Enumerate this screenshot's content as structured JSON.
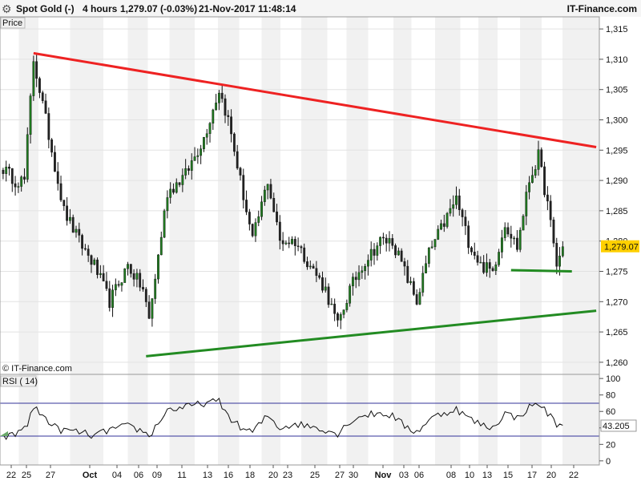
{
  "header": {
    "instrument": "Spot Gold (-)",
    "timeframe": "4 hours",
    "quote": "1,279.07 (-0.03%)",
    "datetime": "21-Nov-2017 11:48:14",
    "brand": "IT-Finance.com"
  },
  "price_panel": {
    "label": "Price",
    "watermark": "© IT-Finance.com",
    "last_price_label": "1,279.07",
    "last_price_color": "#ffd000"
  },
  "rsi_panel": {
    "label": "RSI ( 14)",
    "last_value_label": "43.205"
  },
  "colors": {
    "up_candle": "#1f7a1f",
    "down_candle": "#222222",
    "resistance_line": "#ee2222",
    "support_line": "#228b22",
    "band_line": "#333399",
    "alt_band": "#f1f1f1"
  },
  "chart_data": [
    {
      "type": "candlestick",
      "panel": "price",
      "title": "Spot Gold (-)",
      "ylim": [
        1258,
        1317
      ],
      "yticks": [
        1260,
        1265,
        1270,
        1275,
        1280,
        1285,
        1290,
        1295,
        1300,
        1305,
        1310,
        1315
      ],
      "ytick_labels": [
        "1,260",
        "1,265",
        "1,270",
        "1,275",
        "1,280",
        "1,285",
        "1,290",
        "1,295",
        "1,300",
        "1,305",
        "1,310",
        "1,315"
      ],
      "x_labels": [
        "22",
        "25",
        "27",
        "Oct",
        "04",
        "06",
        "09",
        "11",
        "13",
        "16",
        "18",
        "20",
        "23",
        "25",
        "27",
        "30",
        "Nov",
        "03",
        "06",
        "08",
        "10",
        "13",
        "15",
        "17",
        "20",
        "22"
      ],
      "x_label_bold": [
        "Oct",
        "Nov"
      ],
      "grid": true,
      "last_price": 1279.07,
      "anchors": [
        {
          "i": 0,
          "v": 1292
        },
        {
          "i": 4,
          "v": 1290
        },
        {
          "i": 7,
          "v": 1290
        },
        {
          "i": 10,
          "v": 1310
        },
        {
          "i": 14,
          "v": 1300
        },
        {
          "i": 20,
          "v": 1285
        },
        {
          "i": 25,
          "v": 1280
        },
        {
          "i": 30,
          "v": 1276
        },
        {
          "i": 35,
          "v": 1270
        },
        {
          "i": 41,
          "v": 1276
        },
        {
          "i": 46,
          "v": 1272
        },
        {
          "i": 48,
          "v": 1267
        },
        {
          "i": 54,
          "v": 1288
        },
        {
          "i": 60,
          "v": 1291
        },
        {
          "i": 66,
          "v": 1297
        },
        {
          "i": 71,
          "v": 1305
        },
        {
          "i": 74,
          "v": 1300
        },
        {
          "i": 78,
          "v": 1290
        },
        {
          "i": 82,
          "v": 1280
        },
        {
          "i": 87,
          "v": 1290
        },
        {
          "i": 91,
          "v": 1280
        },
        {
          "i": 96,
          "v": 1280
        },
        {
          "i": 101,
          "v": 1276
        },
        {
          "i": 106,
          "v": 1272
        },
        {
          "i": 110,
          "v": 1266
        },
        {
          "i": 114,
          "v": 1272
        },
        {
          "i": 118,
          "v": 1276
        },
        {
          "i": 124,
          "v": 1280
        },
        {
          "i": 128,
          "v": 1280
        },
        {
          "i": 132,
          "v": 1275
        },
        {
          "i": 136,
          "v": 1270
        },
        {
          "i": 140,
          "v": 1278
        },
        {
          "i": 144,
          "v": 1282
        },
        {
          "i": 149,
          "v": 1287
        },
        {
          "i": 153,
          "v": 1280
        },
        {
          "i": 157,
          "v": 1276
        },
        {
          "i": 161,
          "v": 1275
        },
        {
          "i": 165,
          "v": 1283
        },
        {
          "i": 169,
          "v": 1279
        },
        {
          "i": 173,
          "v": 1290
        },
        {
          "i": 176,
          "v": 1294
        },
        {
          "i": 179,
          "v": 1286
        },
        {
          "i": 182,
          "v": 1276
        },
        {
          "i": 184,
          "v": 1279
        }
      ],
      "trendlines": [
        {
          "kind": "resistance",
          "i1": 10,
          "v1": 1311,
          "i2": 195,
          "v2": 1295.5
        },
        {
          "kind": "support",
          "i1": 47,
          "v1": 1261,
          "i2": 195,
          "v2": 1268.5
        },
        {
          "kind": "support-short",
          "i1": 167,
          "v1": 1275.2,
          "i2": 187,
          "v2": 1275.0
        }
      ]
    },
    {
      "type": "line",
      "panel": "rsi",
      "title": "RSI ( 14)",
      "ylim": [
        -5,
        105
      ],
      "yticks": [
        0,
        20,
        40,
        60,
        80,
        100
      ],
      "ytick_labels": [
        "0",
        "20",
        "40",
        "60",
        "80",
        "100"
      ],
      "bands": [
        30,
        70
      ],
      "last_value": 43.205,
      "anchors": [
        {
          "i": 0,
          "v": 28
        },
        {
          "i": 4,
          "v": 32
        },
        {
          "i": 8,
          "v": 45
        },
        {
          "i": 10,
          "v": 65
        },
        {
          "i": 13,
          "v": 55
        },
        {
          "i": 18,
          "v": 38
        },
        {
          "i": 25,
          "v": 35
        },
        {
          "i": 30,
          "v": 30
        },
        {
          "i": 35,
          "v": 38
        },
        {
          "i": 41,
          "v": 42
        },
        {
          "i": 46,
          "v": 36
        },
        {
          "i": 48,
          "v": 30
        },
        {
          "i": 54,
          "v": 62
        },
        {
          "i": 60,
          "v": 65
        },
        {
          "i": 66,
          "v": 70
        },
        {
          "i": 71,
          "v": 72
        },
        {
          "i": 74,
          "v": 55
        },
        {
          "i": 78,
          "v": 40
        },
        {
          "i": 82,
          "v": 35
        },
        {
          "i": 87,
          "v": 55
        },
        {
          "i": 91,
          "v": 40
        },
        {
          "i": 96,
          "v": 45
        },
        {
          "i": 101,
          "v": 42
        },
        {
          "i": 106,
          "v": 38
        },
        {
          "i": 110,
          "v": 33
        },
        {
          "i": 114,
          "v": 48
        },
        {
          "i": 118,
          "v": 55
        },
        {
          "i": 124,
          "v": 58
        },
        {
          "i": 128,
          "v": 55
        },
        {
          "i": 132,
          "v": 42
        },
        {
          "i": 136,
          "v": 35
        },
        {
          "i": 140,
          "v": 50
        },
        {
          "i": 144,
          "v": 57
        },
        {
          "i": 149,
          "v": 63
        },
        {
          "i": 153,
          "v": 52
        },
        {
          "i": 157,
          "v": 44
        },
        {
          "i": 161,
          "v": 40
        },
        {
          "i": 165,
          "v": 58
        },
        {
          "i": 169,
          "v": 52
        },
        {
          "i": 173,
          "v": 65
        },
        {
          "i": 176,
          "v": 70
        },
        {
          "i": 179,
          "v": 58
        },
        {
          "i": 182,
          "v": 45
        },
        {
          "i": 184,
          "v": 43
        }
      ]
    }
  ]
}
